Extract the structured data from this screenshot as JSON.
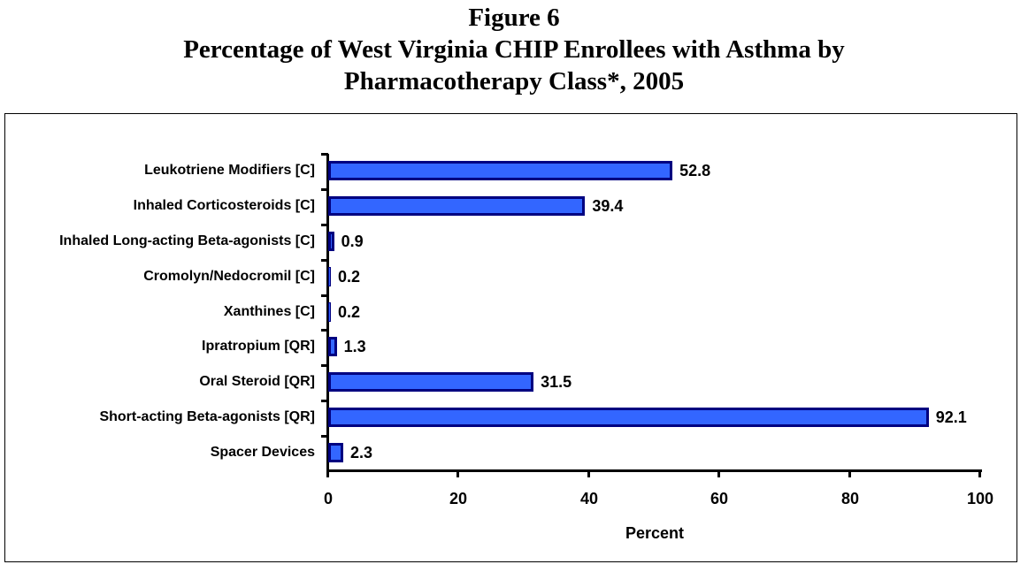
{
  "figure": {
    "number_label": "Figure 6",
    "title_line1": "Percentage of West Virginia CHIP Enrollees with Asthma by",
    "title_line2": "Pharmacotherapy Class*, 2005"
  },
  "chart_data": {
    "type": "bar",
    "orientation": "horizontal",
    "title": "Figure 6 Percentage of West Virginia CHIP Enrollees with Asthma by Pharmacotherapy Class*, 2005",
    "categories": [
      "Leukotriene Modifiers [C]",
      "Inhaled Corticosteroids [C]",
      "Inhaled Long-acting Beta-agonists [C]",
      "Cromolyn/Nedocromil [C]",
      "Xanthines [C]",
      "Ipratropium [QR]",
      "Oral Steroid [QR]",
      "Short-acting Beta-agonists [QR]",
      "Spacer Devices"
    ],
    "values": [
      52.8,
      39.4,
      0.9,
      0.2,
      0.2,
      1.3,
      31.5,
      92.1,
      2.3
    ],
    "value_labels": [
      "52.8",
      "39.4",
      "0.9",
      "0.2",
      "0.2",
      "1.3",
      "31.5",
      "92.1",
      "2.3"
    ],
    "xlabel": "Percent",
    "ylabel": "",
    "xlim": [
      0,
      100
    ],
    "xticks": [
      "0",
      "20",
      "40",
      "60",
      "80",
      "100"
    ],
    "grid": false,
    "legend": null,
    "colors": {
      "bar_fill": "#3366ff",
      "bar_border": "#000080"
    }
  }
}
